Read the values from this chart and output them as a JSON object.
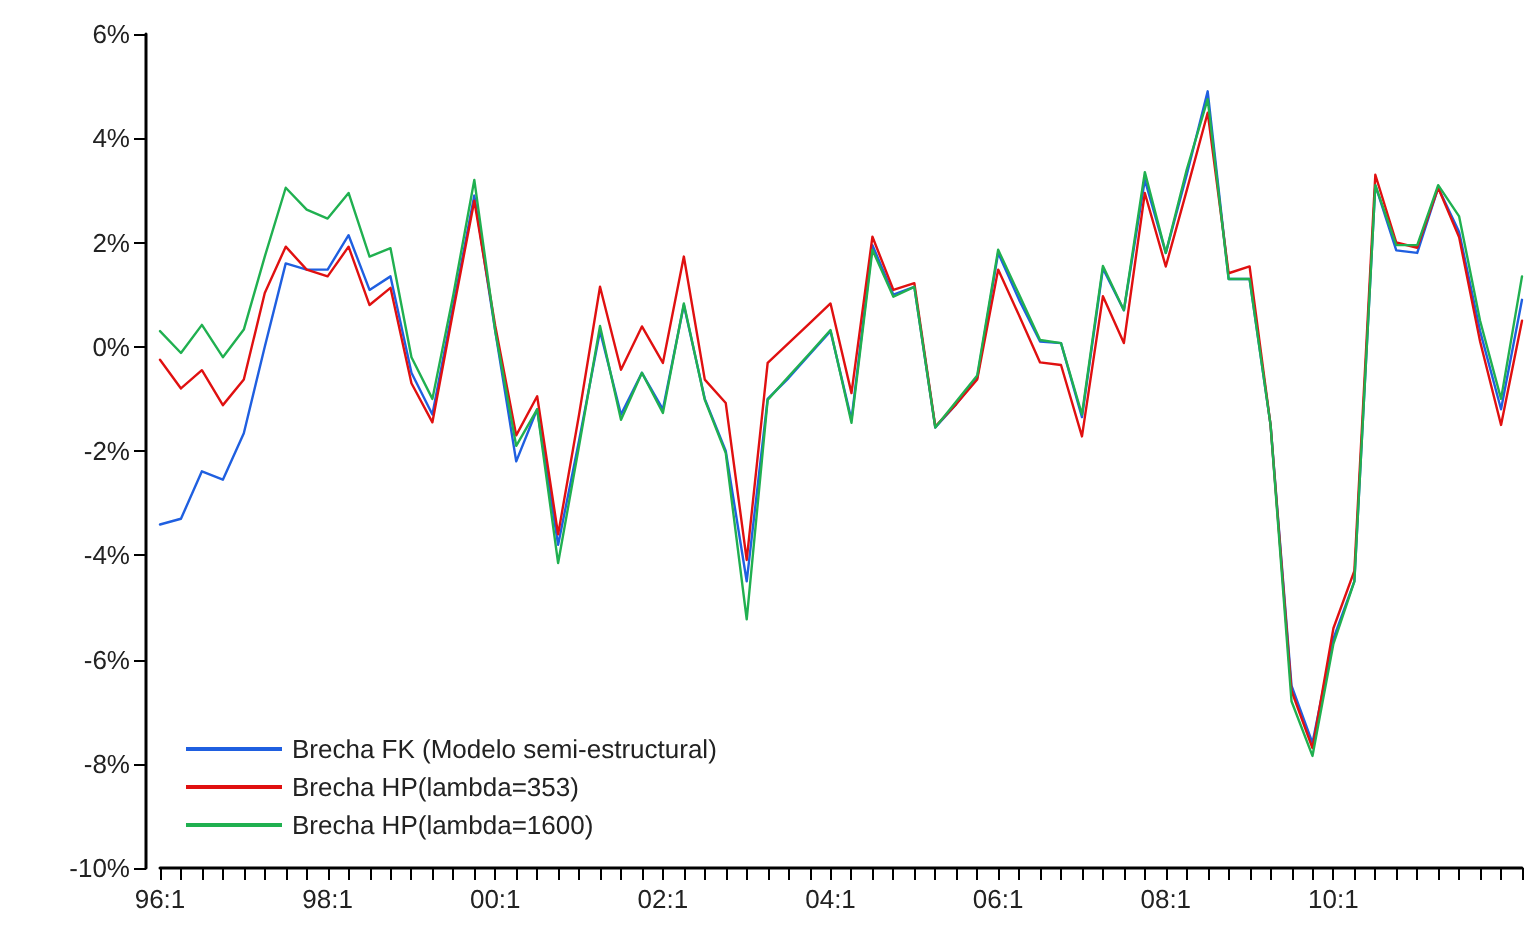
{
  "chart_data": {
    "type": "line",
    "categories": [
      "96:1",
      null,
      null,
      null,
      null,
      null,
      null,
      null,
      "98:1",
      null,
      null,
      null,
      null,
      null,
      null,
      null,
      "00:1",
      null,
      null,
      null,
      null,
      null,
      null,
      null,
      "02:1",
      null,
      null,
      null,
      null,
      null,
      null,
      null,
      "04:1",
      null,
      null,
      null,
      null,
      null,
      null,
      null,
      "06:1",
      null,
      null,
      null,
      null,
      null,
      null,
      null,
      "08:1",
      null,
      null,
      null,
      null,
      null,
      null,
      null,
      "10:1",
      null,
      null,
      null,
      null,
      null,
      null,
      null,
      null,
      null
    ],
    "series": [
      {
        "name": "Brecha FK (Modelo semi-estructural)",
        "color": "#1f5fe0",
        "values": [
          -3.41,
          -3.3,
          -2.39,
          -2.55,
          -1.66,
          0.0,
          1.6,
          1.48,
          1.48,
          2.14,
          1.09,
          1.35,
          -0.5,
          -1.3,
          0.8,
          2.9,
          0.3,
          -2.2,
          -1.2,
          -3.8,
          -1.8,
          0.3,
          -1.3,
          -0.5,
          -1.2,
          0.8,
          -1.0,
          -2.0,
          -4.5,
          -1.0,
          -0.6,
          -0.15,
          0.3,
          -1.4,
          1.95,
          1.0,
          1.15,
          -1.55,
          -1.1,
          -0.6,
          1.8,
          0.9,
          0.1,
          0.07,
          -1.35,
          1.5,
          0.7,
          3.2,
          1.8,
          3.3,
          4.9,
          1.3,
          1.3,
          -1.5,
          -6.5,
          -7.6,
          -5.6,
          -4.5,
          3.1,
          1.85,
          1.8,
          3.05,
          2.2,
          0.3,
          -1.2,
          0.9
        ]
      },
      {
        "name": "Brecha HP(lambda=353)",
        "color": "#e01010",
        "values": [
          -0.25,
          -0.8,
          -0.45,
          -1.12,
          -0.63,
          1.03,
          1.92,
          1.48,
          1.35,
          1.92,
          0.8,
          1.13,
          -0.7,
          -1.45,
          0.7,
          2.8,
          0.4,
          -1.7,
          -0.95,
          -3.6,
          -1.3,
          1.15,
          -0.44,
          0.39,
          -0.31,
          1.73,
          -0.63,
          -1.08,
          -4.09,
          -0.31,
          0.07,
          0.45,
          0.83,
          -0.89,
          2.11,
          1.09,
          1.22,
          -1.53,
          -1.1,
          -0.63,
          1.48,
          0.6,
          -0.3,
          -0.35,
          -1.72,
          0.97,
          0.07,
          2.95,
          1.54,
          3.0,
          4.49,
          1.41,
          1.54,
          -1.5,
          -6.6,
          -7.7,
          -5.4,
          -4.3,
          3.3,
          2.0,
          1.9,
          3.05,
          2.1,
          0.1,
          -1.5,
          0.5
        ]
      },
      {
        "name": "Brecha HP(lambda=1600)",
        "color": "#20b050",
        "values": [
          0.3,
          -0.12,
          0.42,
          -0.2,
          0.33,
          1.73,
          3.05,
          2.63,
          2.46,
          2.95,
          1.73,
          1.89,
          -0.2,
          -1.0,
          1.0,
          3.2,
          0.3,
          -1.9,
          -1.2,
          -4.15,
          -1.9,
          0.4,
          -1.4,
          -0.5,
          -1.27,
          0.83,
          -1.02,
          -2.04,
          -5.23,
          -1.02,
          -0.57,
          -0.13,
          0.32,
          -1.46,
          1.86,
          0.96,
          1.15,
          -1.55,
          -1.05,
          -0.55,
          1.86,
          1.0,
          0.13,
          0.07,
          -1.3,
          1.55,
          0.7,
          3.35,
          1.8,
          3.4,
          4.75,
          1.3,
          1.3,
          -1.5,
          -6.8,
          -7.85,
          -5.7,
          -4.5,
          3.1,
          1.95,
          1.95,
          3.1,
          2.5,
          0.5,
          -1.0,
          1.35
        ]
      }
    ],
    "ylim": [
      -10,
      6
    ],
    "yticks": [
      {
        "value": -10,
        "label": "-10%"
      },
      {
        "value": -8,
        "label": "-8%"
      },
      {
        "value": -6,
        "label": "-6%"
      },
      {
        "value": -4,
        "label": "-4%"
      },
      {
        "value": -2,
        "label": "-2%"
      },
      {
        "value": 0,
        "label": "0%"
      },
      {
        "value": 2,
        "label": "2%"
      },
      {
        "value": 4,
        "label": "4%"
      },
      {
        "value": 6,
        "label": "6%"
      }
    ],
    "grid": false,
    "legend": "bottom left",
    "marker": "none",
    "line_style": "solid"
  }
}
